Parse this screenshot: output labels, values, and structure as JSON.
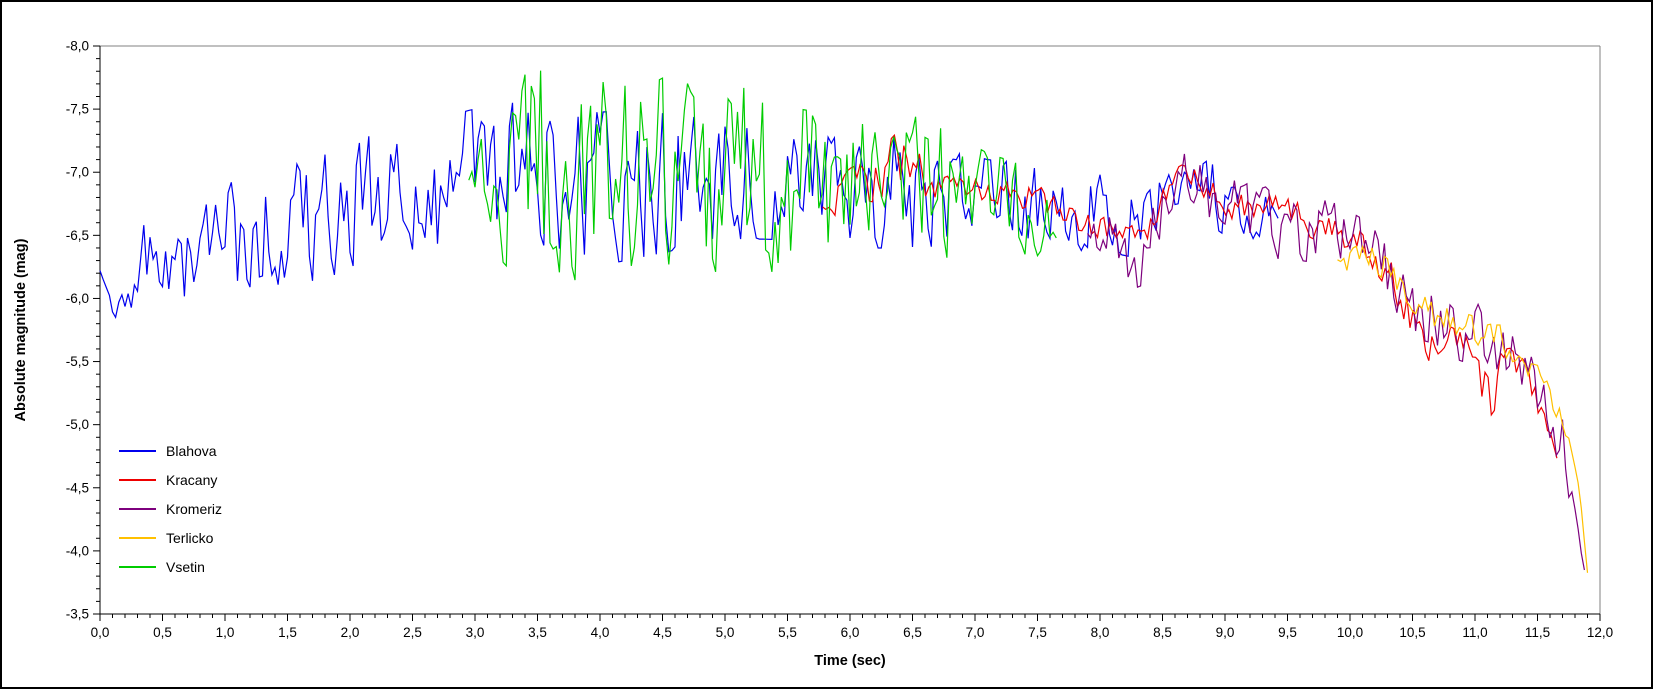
{
  "window": {
    "background_color": "#ffffff",
    "frame_border_color": "#000000",
    "plot_border_secondary_color": "#808080",
    "axis_color": "#000000"
  },
  "chart_data": {
    "type": "line",
    "title": "",
    "xlabel": "Time (sec)",
    "ylabel": "Absolute magnitude (mag)",
    "x_range": [
      0,
      12
    ],
    "y_axis_top_value": -8.0,
    "y_axis_bottom_value": -3.5,
    "x_major_step": 0.5,
    "x_minor_step": 0.1,
    "y_major_step": 0.5,
    "y_minor_step": 0.1,
    "decimal_separator": ",",
    "grid": "none",
    "legend_position": "inside-left-middle",
    "x_tick_labels": [
      "0,0",
      "0,5",
      "1,0",
      "1,5",
      "2,0",
      "2,5",
      "3,0",
      "3,5",
      "4,0",
      "4,5",
      "5,0",
      "5,5",
      "6,0",
      "6,5",
      "7,0",
      "7,5",
      "8,0",
      "8,5",
      "9,0",
      "9,5",
      "10,0",
      "10,5",
      "11,0",
      "11,5",
      "12,0"
    ],
    "y_tick_labels": [
      "-8,0",
      "-7,5",
      "-7,0",
      "-6,5",
      "-6,0",
      "-5,5",
      "-5,0",
      "-4,5",
      "-4,0",
      "-3,5"
    ],
    "series_note": "trend entries are [time_sec, mean_magnitude, flicker_half_range_mag]; curves flicker rapidly about the mean within the half-range",
    "series": [
      {
        "name": "Blahova",
        "color": "#0000EE",
        "t_start": 0.0,
        "t_end": 9.42,
        "sample_dt": 0.025,
        "noise_seed": 11,
        "trend": [
          [
            0.0,
            -6.22,
            0.04
          ],
          [
            0.1,
            -5.9,
            0.06
          ],
          [
            0.22,
            -5.97,
            0.1
          ],
          [
            0.35,
            -6.28,
            0.3
          ],
          [
            0.55,
            -6.05,
            0.32
          ],
          [
            0.8,
            -6.35,
            0.35
          ],
          [
            1.05,
            -6.5,
            0.42
          ],
          [
            1.35,
            -6.55,
            0.45
          ],
          [
            1.7,
            -6.62,
            0.48
          ],
          [
            2.0,
            -6.72,
            0.5
          ],
          [
            2.35,
            -6.85,
            0.52
          ],
          [
            2.7,
            -6.92,
            0.52
          ],
          [
            3.0,
            -6.98,
            0.52
          ],
          [
            3.3,
            -7.05,
            0.5
          ],
          [
            3.55,
            -7.0,
            0.58
          ],
          [
            3.8,
            -6.92,
            0.55
          ],
          [
            4.1,
            -6.88,
            0.6
          ],
          [
            4.4,
            -6.92,
            0.58
          ],
          [
            4.7,
            -6.92,
            0.52
          ],
          [
            5.0,
            -6.95,
            0.48
          ],
          [
            5.3,
            -6.92,
            0.45
          ],
          [
            5.6,
            -6.88,
            0.42
          ],
          [
            5.9,
            -6.85,
            0.42
          ],
          [
            6.2,
            -6.85,
            0.45
          ],
          [
            6.5,
            -6.82,
            0.42
          ],
          [
            6.8,
            -6.8,
            0.38
          ],
          [
            7.1,
            -6.75,
            0.35
          ],
          [
            7.4,
            -6.72,
            0.35
          ],
          [
            7.7,
            -6.7,
            0.32
          ],
          [
            8.0,
            -6.68,
            0.3
          ],
          [
            8.3,
            -6.6,
            0.28
          ],
          [
            8.55,
            -6.9,
            0.22
          ],
          [
            8.72,
            -7.0,
            0.18
          ],
          [
            8.9,
            -6.82,
            0.25
          ],
          [
            9.1,
            -6.65,
            0.22
          ],
          [
            9.3,
            -6.68,
            0.18
          ],
          [
            9.42,
            -6.62,
            0.1
          ]
        ]
      },
      {
        "name": "Kracany",
        "color": "#EE0000",
        "t_start": 5.78,
        "t_end": 11.66,
        "sample_dt": 0.025,
        "noise_seed": 5,
        "trend": [
          [
            5.78,
            -6.72,
            0.12
          ],
          [
            6.0,
            -6.88,
            0.15
          ],
          [
            6.2,
            -6.95,
            0.18
          ],
          [
            6.38,
            -7.1,
            0.22
          ],
          [
            6.6,
            -6.95,
            0.15
          ],
          [
            6.8,
            -6.92,
            0.12
          ],
          [
            7.0,
            -6.9,
            0.1
          ],
          [
            7.25,
            -6.82,
            0.1
          ],
          [
            7.5,
            -6.8,
            0.1
          ],
          [
            7.75,
            -6.62,
            0.1
          ],
          [
            8.0,
            -6.55,
            0.1
          ],
          [
            8.3,
            -6.45,
            0.12
          ],
          [
            8.55,
            -6.88,
            0.1
          ],
          [
            8.7,
            -7.02,
            0.08
          ],
          [
            8.9,
            -6.85,
            0.12
          ],
          [
            9.1,
            -6.72,
            0.12
          ],
          [
            9.4,
            -6.7,
            0.12
          ],
          [
            9.65,
            -6.62,
            0.12
          ],
          [
            9.9,
            -6.5,
            0.12
          ],
          [
            10.15,
            -6.38,
            0.12
          ],
          [
            10.4,
            -6.05,
            0.15
          ],
          [
            10.6,
            -5.6,
            0.12
          ],
          [
            10.8,
            -5.7,
            0.1
          ],
          [
            11.0,
            -5.62,
            0.12
          ],
          [
            11.1,
            -5.25,
            0.32
          ],
          [
            11.25,
            -5.55,
            0.12
          ],
          [
            11.4,
            -5.38,
            0.12
          ],
          [
            11.55,
            -5.0,
            0.12
          ],
          [
            11.66,
            -4.72,
            0.06
          ]
        ]
      },
      {
        "name": "Kromeriz",
        "color": "#7D007D",
        "t_start": 7.9,
        "t_end": 11.88,
        "sample_dt": 0.025,
        "noise_seed": 37,
        "trend": [
          [
            7.9,
            -6.5,
            0.1
          ],
          [
            8.1,
            -6.5,
            0.2
          ],
          [
            8.3,
            -6.32,
            0.28
          ],
          [
            8.55,
            -6.85,
            0.22
          ],
          [
            8.7,
            -7.0,
            0.18
          ],
          [
            8.9,
            -6.78,
            0.25
          ],
          [
            9.1,
            -6.62,
            0.3
          ],
          [
            9.35,
            -6.6,
            0.28
          ],
          [
            9.6,
            -6.55,
            0.25
          ],
          [
            9.85,
            -6.52,
            0.25
          ],
          [
            10.1,
            -6.38,
            0.25
          ],
          [
            10.35,
            -6.15,
            0.25
          ],
          [
            10.55,
            -5.95,
            0.25
          ],
          [
            10.75,
            -5.8,
            0.25
          ],
          [
            11.0,
            -5.72,
            0.25
          ],
          [
            11.2,
            -5.62,
            0.22
          ],
          [
            11.4,
            -5.45,
            0.2
          ],
          [
            11.55,
            -5.15,
            0.18
          ],
          [
            11.7,
            -4.85,
            0.22
          ],
          [
            11.8,
            -4.3,
            0.15
          ],
          [
            11.88,
            -3.82,
            0.05
          ]
        ]
      },
      {
        "name": "Terlicko",
        "color": "#FFC000",
        "t_start": 9.9,
        "t_end": 11.91,
        "sample_dt": 0.025,
        "noise_seed": 49,
        "trend": [
          [
            9.9,
            -6.3,
            0.1
          ],
          [
            10.1,
            -6.35,
            0.12
          ],
          [
            10.3,
            -6.22,
            0.12
          ],
          [
            10.5,
            -6.02,
            0.12
          ],
          [
            10.7,
            -5.85,
            0.12
          ],
          [
            10.9,
            -5.8,
            0.12
          ],
          [
            11.1,
            -5.72,
            0.12
          ],
          [
            11.3,
            -5.62,
            0.12
          ],
          [
            11.5,
            -5.35,
            0.12
          ],
          [
            11.65,
            -5.12,
            0.1
          ],
          [
            11.76,
            -4.9,
            0.06
          ],
          [
            11.84,
            -4.45,
            0.06
          ],
          [
            11.91,
            -3.72,
            0.03
          ]
        ]
      },
      {
        "name": "Vsetin",
        "color": "#00CC00",
        "t_start": 2.95,
        "t_end": 7.66,
        "sample_dt": 0.025,
        "noise_seed": 23,
        "trend": [
          [
            2.95,
            -6.95,
            0.18
          ],
          [
            3.1,
            -6.88,
            0.45
          ],
          [
            3.3,
            -6.95,
            0.75
          ],
          [
            3.5,
            -7.1,
            0.82
          ],
          [
            3.7,
            -6.95,
            0.78
          ],
          [
            3.9,
            -6.92,
            0.8
          ],
          [
            4.1,
            -7.0,
            0.72
          ],
          [
            4.3,
            -6.95,
            0.7
          ],
          [
            4.55,
            -7.02,
            0.75
          ],
          [
            4.8,
            -6.92,
            0.8
          ],
          [
            5.05,
            -7.0,
            0.7
          ],
          [
            5.3,
            -6.9,
            0.72
          ],
          [
            5.6,
            -6.92,
            0.62
          ],
          [
            5.9,
            -6.9,
            0.55
          ],
          [
            6.2,
            -6.9,
            0.5
          ],
          [
            6.5,
            -6.9,
            0.55
          ],
          [
            6.8,
            -6.82,
            0.5
          ],
          [
            7.1,
            -6.75,
            0.4
          ],
          [
            7.4,
            -6.7,
            0.35
          ],
          [
            7.66,
            -6.5,
            0.18
          ]
        ]
      }
    ]
  }
}
